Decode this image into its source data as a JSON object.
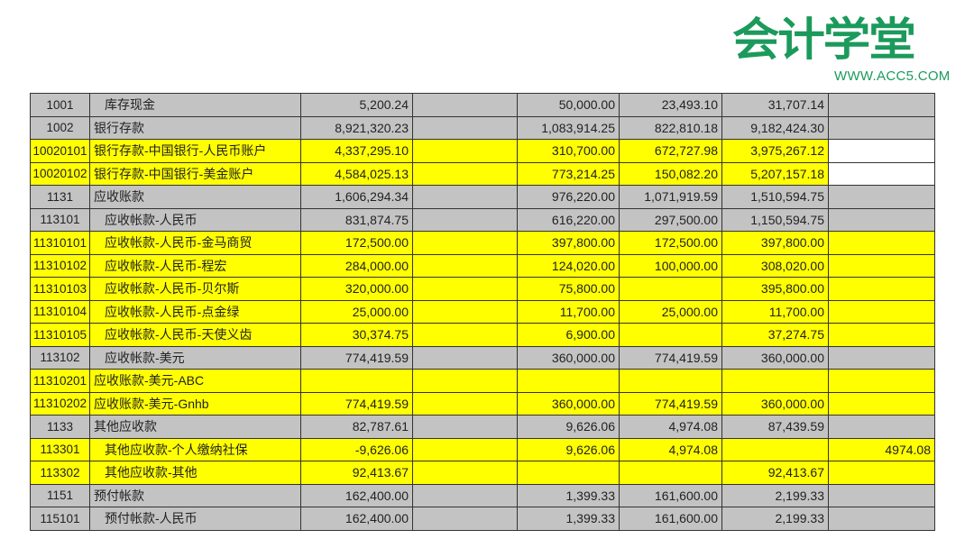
{
  "logo": {
    "text": "会计学堂",
    "url": "WWW.ACC5.COM",
    "color": "#1b9a5c"
  },
  "colors": {
    "grey": "#c3c3c3",
    "yellow": "#ffff00"
  },
  "rows": [
    {
      "code": "1001",
      "name": "库存现金",
      "indent": true,
      "fill": "grey",
      "c3": "5,200.24",
      "c4": "",
      "c5": "50,000.00",
      "c6": "23,493.10",
      "c7": "31,707.14",
      "c8": "",
      "c8_white": false
    },
    {
      "code": "1002",
      "name": "银行存款",
      "indent": false,
      "fill": "grey",
      "c3": "8,921,320.23",
      "c4": "",
      "c5": "1,083,914.25",
      "c6": "822,810.18",
      "c7": "9,182,424.30",
      "c8": "",
      "c8_white": false
    },
    {
      "code": "10020101",
      "name": "银行存款-中国银行-人民币账户",
      "indent": false,
      "fill": "yellow",
      "c3": "4,337,295.10",
      "c4": "",
      "c5": "310,700.00",
      "c6": "672,727.98",
      "c7": "3,975,267.12",
      "c8": "",
      "c8_white": true
    },
    {
      "code": "10020102",
      "name": "银行存款-中国银行-美金账户",
      "indent": false,
      "fill": "yellow",
      "c3": "4,584,025.13",
      "c4": "",
      "c5": "773,214.25",
      "c6": "150,082.20",
      "c7": "5,207,157.18",
      "c8": "",
      "c8_white": true
    },
    {
      "code": "1131",
      "name": "应收账款",
      "indent": false,
      "fill": "grey",
      "c3": "1,606,294.34",
      "c4": "",
      "c5": "976,220.00",
      "c6": "1,071,919.59",
      "c7": "1,510,594.75",
      "c8": "",
      "c8_white": false
    },
    {
      "code": "113101",
      "name": "应收帐款-人民币",
      "indent": true,
      "fill": "grey",
      "c3": "831,874.75",
      "c4": "",
      "c5": "616,220.00",
      "c6": "297,500.00",
      "c7": "1,150,594.75",
      "c8": "",
      "c8_white": false
    },
    {
      "code": "11310101",
      "name": "应收帐款-人民币-金马商贸",
      "indent": true,
      "fill": "yellow",
      "c3": "172,500.00",
      "c4": "",
      "c5": "397,800.00",
      "c6": "172,500.00",
      "c7": "397,800.00",
      "c8": "",
      "c8_white": false
    },
    {
      "code": "11310102",
      "name": "应收帐款-人民币-程宏",
      "indent": true,
      "fill": "yellow",
      "c3": "284,000.00",
      "c4": "",
      "c5": "124,020.00",
      "c6": "100,000.00",
      "c7": "308,020.00",
      "c8": "",
      "c8_white": false
    },
    {
      "code": "11310103",
      "name": "应收帐款-人民币-贝尔斯",
      "indent": true,
      "fill": "yellow",
      "c3": "320,000.00",
      "c4": "",
      "c5": "75,800.00",
      "c6": "",
      "c7": "395,800.00",
      "c8": "",
      "c8_white": false
    },
    {
      "code": "11310104",
      "name": "应收帐款-人民币-点金绿",
      "indent": true,
      "fill": "yellow",
      "c3": "25,000.00",
      "c4": "",
      "c5": "11,700.00",
      "c6": "25,000.00",
      "c7": "11,700.00",
      "c8": "",
      "c8_white": false
    },
    {
      "code": "11310105",
      "name": "应收帐款-人民币-天使义齿",
      "indent": true,
      "fill": "yellow",
      "c3": "30,374.75",
      "c4": "",
      "c5": "6,900.00",
      "c6": "",
      "c7": "37,274.75",
      "c8": "",
      "c8_white": false
    },
    {
      "code": "113102",
      "name": "应收帐款-美元",
      "indent": true,
      "fill": "grey",
      "c3": "774,419.59",
      "c4": "",
      "c5": "360,000.00",
      "c6": "774,419.59",
      "c7": "360,000.00",
      "c8": "",
      "c8_white": false
    },
    {
      "code": "11310201",
      "name": "应收账款-美元-ABC",
      "indent": false,
      "fill": "yellow",
      "c3": "",
      "c4": "",
      "c5": "",
      "c6": "",
      "c7": "",
      "c8": "",
      "c8_white": false
    },
    {
      "code": "11310202",
      "name": "应收账款-美元-Gnhb",
      "indent": false,
      "fill": "yellow",
      "c3": "774,419.59",
      "c4": "",
      "c5": "360,000.00",
      "c6": "774,419.59",
      "c7": "360,000.00",
      "c8": "",
      "c8_white": false
    },
    {
      "code": "1133",
      "name": "其他应收款",
      "indent": false,
      "fill": "grey",
      "c3": "82,787.61",
      "c4": "",
      "c5": "9,626.06",
      "c6": "4,974.08",
      "c7": "87,439.59",
      "c8": "",
      "c8_white": false
    },
    {
      "code": "113301",
      "name": "其他应收款-个人缴纳社保",
      "indent": true,
      "fill": "yellow",
      "c3": "-9,626.06",
      "c4": "",
      "c5": "9,626.06",
      "c6": "4,974.08",
      "c7": "",
      "c8": "4974.08",
      "c8_white": false
    },
    {
      "code": "113302",
      "name": "其他应收款-其他",
      "indent": true,
      "fill": "yellow",
      "c3": "92,413.67",
      "c4": "",
      "c5": "",
      "c6": "",
      "c7": "92,413.67",
      "c8": "",
      "c8_white": false
    },
    {
      "code": "1151",
      "name": "预付帐款",
      "indent": false,
      "fill": "grey",
      "c3": "162,400.00",
      "c4": "",
      "c5": "1,399.33",
      "c6": "161,600.00",
      "c7": "2,199.33",
      "c8": "",
      "c8_white": false
    },
    {
      "code": "115101",
      "name": "预付帐款-人民币",
      "indent": true,
      "fill": "grey",
      "c3": "162,400.00",
      "c4": "",
      "c5": "1,399.33",
      "c6": "161,600.00",
      "c7": "2,199.33",
      "c8": "",
      "c8_white": false
    }
  ]
}
